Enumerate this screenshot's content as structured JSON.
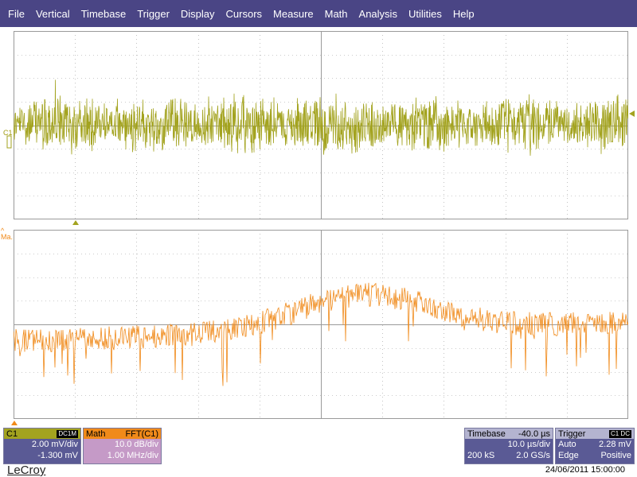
{
  "menu": [
    "File",
    "Vertical",
    "Timebase",
    "Trigger",
    "Display",
    "Cursors",
    "Measure",
    "Math",
    "Analysis",
    "Utilities",
    "Help"
  ],
  "colors": {
    "c1": "#a3a31f",
    "math": "#f08a1a",
    "menubar": "#4a4585",
    "grid": "#9a9a9a"
  },
  "traces": {
    "c1_label": "C1",
    "math_label": "Ma."
  },
  "c1": {
    "label": "C1",
    "badge": "DC1M",
    "scale": "2.00 mV/div",
    "offset": "-1.300 mV"
  },
  "math": {
    "label": "Math",
    "func": "FFT(C1)",
    "scale": "10.0 dB/div",
    "span": "1.00 MHz/div"
  },
  "timebase": {
    "label": "Timebase",
    "delay": "-40.0 µs",
    "per_div": "10.0 µs/div",
    "samples": "200 kS",
    "rate": "2.0 GS/s"
  },
  "trigger": {
    "label": "Trigger",
    "badge": "C1 DC",
    "mode": "Auto",
    "level": "2.28 mV",
    "type": "Edge",
    "slope": "Positive"
  },
  "brand": "LeCroy",
  "datetime": "24/06/2011 15:00:00"
}
